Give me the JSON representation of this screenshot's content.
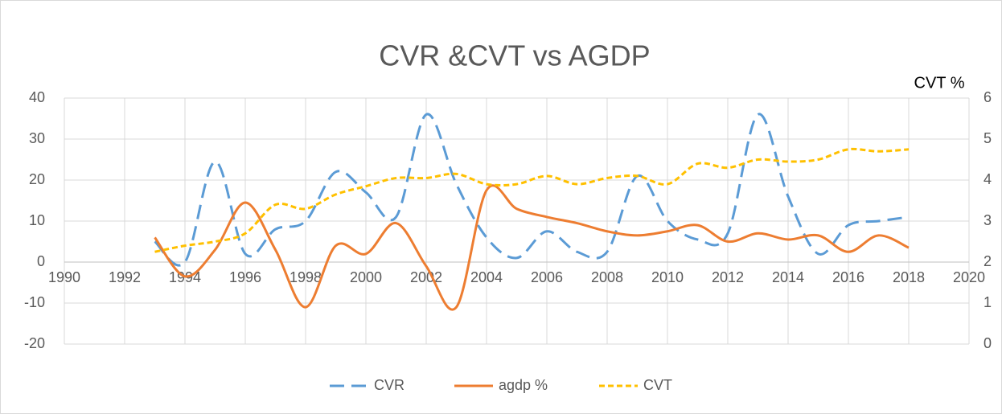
{
  "chart_data": {
    "type": "line",
    "title": "CVR &CVT vs AGDP",
    "y2_label": "CVT %",
    "x": [
      1993,
      1994,
      1995,
      1996,
      1997,
      1998,
      1999,
      2000,
      2001,
      2002,
      2003,
      2004,
      2005,
      2006,
      2007,
      2008,
      2009,
      2010,
      2011,
      2012,
      2013,
      2014,
      2015,
      2016,
      2017,
      2018
    ],
    "series": [
      {
        "name": "CVR",
        "color": "#5b9bd5",
        "dash": "long",
        "values": [
          5,
          0,
          24.5,
          2,
          8,
          10,
          22,
          17,
          11,
          36,
          19,
          6,
          1,
          7.5,
          2.5,
          2.5,
          21,
          10,
          5.5,
          7,
          36,
          16,
          2,
          9,
          10,
          11
        ]
      },
      {
        "name": "agdp %",
        "color": "#ed7d31",
        "dash": "solid",
        "values": [
          6,
          -3.5,
          3,
          14.5,
          3,
          -11,
          4,
          2,
          9.5,
          -1,
          -11,
          17.5,
          13,
          11,
          9.5,
          7.5,
          6.5,
          7.5,
          9,
          5,
          7,
          5.5,
          6.5,
          2.5,
          6.5,
          3.5
        ]
      },
      {
        "name": "CVT",
        "color": "#ffc000",
        "dash": "short",
        "axis": "y2",
        "values": [
          2.25,
          2.4,
          2.5,
          2.7,
          3.4,
          3.3,
          3.65,
          3.85,
          4.05,
          4.05,
          4.15,
          3.9,
          3.9,
          4.1,
          3.9,
          4.05,
          4.1,
          3.9,
          4.4,
          4.3,
          4.5,
          4.45,
          4.5,
          4.75,
          4.7,
          4.75
        ]
      }
    ],
    "xlim": [
      1990,
      2020
    ],
    "xticks": [
      1990,
      1992,
      1994,
      1996,
      1998,
      2000,
      2002,
      2004,
      2006,
      2008,
      2010,
      2012,
      2014,
      2016,
      2018,
      2020
    ],
    "ylim": [
      -20,
      40
    ],
    "yticks": [
      -20,
      -10,
      0,
      10,
      20,
      30,
      40
    ],
    "y2lim": [
      0,
      6
    ],
    "y2ticks": [
      0,
      1,
      2,
      3,
      4,
      5,
      6
    ],
    "grid": true,
    "legend": "bottom",
    "smooth": true
  }
}
